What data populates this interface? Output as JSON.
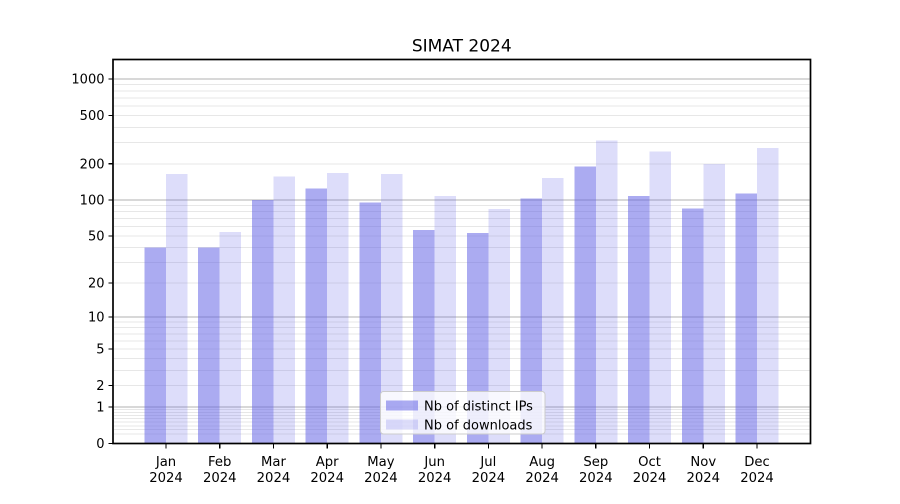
{
  "chart_data": {
    "type": "bar",
    "title": "SIMAT 2024",
    "categories": [
      "Jan",
      "Feb",
      "Mar",
      "Apr",
      "May",
      "Jun",
      "Jul",
      "Aug",
      "Sep",
      "Oct",
      "Nov",
      "Dec"
    ],
    "category_year": "2024",
    "series": [
      {
        "name": "Nb of distinct IPs",
        "color": "rgba(102,102,230,0.55)",
        "values": [
          40,
          40,
          100,
          125,
          95,
          56,
          53,
          103,
          190,
          108,
          85,
          113
        ]
      },
      {
        "name": "Nb of downloads",
        "color": "rgba(102,102,230,0.22)",
        "values": [
          165,
          54,
          157,
          168,
          165,
          108,
          84,
          153,
          310,
          252,
          200,
          270
        ]
      }
    ],
    "y_scale": "symlog",
    "y_ticks": [
      0,
      1,
      2,
      5,
      10,
      20,
      50,
      100,
      200,
      500,
      1000
    ],
    "ylim": [
      0,
      1450
    ],
    "xlabel": "",
    "ylabel": "",
    "grid": true,
    "legend_position": "lower center inside",
    "colors": {
      "major_grid": "#b0b0b0",
      "minor_grid": "#e7e7e7",
      "axis": "#000000",
      "legend_background": "rgba(255,255,255,0.8)",
      "legend_border": "#cccccc"
    }
  }
}
